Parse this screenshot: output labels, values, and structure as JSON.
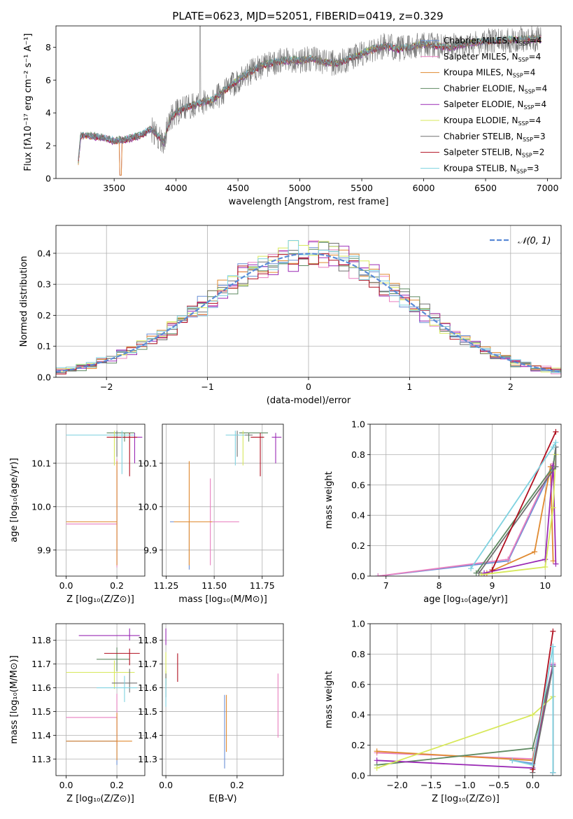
{
  "figure_title": "PLATE=0623, MJD=52051, FIBERID=0419, z=0.329",
  "colors": {
    "chabrier_miles": "#6a8fd6",
    "salpeter_miles": "#e87fbf",
    "kroupa_miles": "#e08a30",
    "chabrier_elodie": "#5f8a62",
    "salpeter_elodie": "#9a2ab5",
    "kroupa_elodie": "#d7e85a",
    "chabrier_stelib": "#707070",
    "salpeter_stelib": "#b01020",
    "kroupa_stelib": "#7fd2e0",
    "gaussian": "#5a8ad6"
  },
  "chart_data": [
    {
      "id": "spectrum",
      "type": "line",
      "xlabel": "wavelength [Angstrom, rest frame]",
      "ylabel": "Flux [fλ10⁻¹⁷ erg cm⁻² s⁻¹ A⁻¹]",
      "xlim": [
        3030,
        7110
      ],
      "ylim": [
        0,
        9.3
      ],
      "xticks": [
        3500,
        4000,
        4500,
        5000,
        5500,
        6000,
        6500,
        7000
      ],
      "yticks": [
        0,
        2,
        4,
        6,
        8
      ],
      "legend_position": "top-right",
      "series": [
        {
          "key": "chabrier_miles",
          "name": "Chabrier MILES, N",
          "sub": "SSP",
          "suffix": "=4"
        },
        {
          "key": "salpeter_miles",
          "name": "Salpeter MILES, N",
          "sub": "SSP",
          "suffix": "=4"
        },
        {
          "key": "kroupa_miles",
          "name": "Kroupa MILES, N",
          "sub": "SSP",
          "suffix": "=4"
        },
        {
          "key": "chabrier_elodie",
          "name": "Chabrier ELODIE, N",
          "sub": "SSP",
          "suffix": "=4"
        },
        {
          "key": "salpeter_elodie",
          "name": "Salpeter ELODIE, N",
          "sub": "SSP",
          "suffix": "=4"
        },
        {
          "key": "kroupa_elodie",
          "name": "Kroupa ELODIE, N",
          "sub": "SSP",
          "suffix": "=4"
        },
        {
          "key": "chabrier_stelib",
          "name": "Chabrier STELIB, N",
          "sub": "SSP",
          "suffix": "=3"
        },
        {
          "key": "salpeter_stelib",
          "name": "Salpeter STELIB, N",
          "sub": "SSP",
          "suffix": "=2"
        },
        {
          "key": "kroupa_stelib",
          "name": "Kroupa STELIB, N",
          "sub": "SSP",
          "suffix": "=3"
        }
      ],
      "continuum": [
        [
          3200,
          0.2
        ],
        [
          3230,
          2.6
        ],
        [
          3300,
          2.6
        ],
        [
          3400,
          2.5
        ],
        [
          3500,
          2.3
        ],
        [
          3600,
          2.4
        ],
        [
          3700,
          2.6
        ],
        [
          3800,
          3.0
        ],
        [
          3850,
          2.6
        ],
        [
          3900,
          2.2
        ],
        [
          3950,
          3.6
        ],
        [
          4000,
          4.0
        ],
        [
          4100,
          4.4
        ],
        [
          4200,
          4.6
        ],
        [
          4300,
          4.8
        ],
        [
          4400,
          5.4
        ],
        [
          4500,
          6.0
        ],
        [
          4600,
          6.5
        ],
        [
          4700,
          6.9
        ],
        [
          4800,
          7.1
        ],
        [
          4900,
          7.2
        ],
        [
          5000,
          7.2
        ],
        [
          5100,
          7.3
        ],
        [
          5200,
          7.1
        ],
        [
          5300,
          7.0
        ],
        [
          5400,
          7.3
        ],
        [
          5500,
          7.6
        ],
        [
          5600,
          7.9
        ],
        [
          5700,
          8.1
        ],
        [
          5800,
          7.9
        ],
        [
          5900,
          8.0
        ],
        [
          6000,
          8.2
        ],
        [
          6200,
          8.0
        ],
        [
          6400,
          8.3
        ],
        [
          6600,
          8.4
        ],
        [
          6800,
          8.5
        ],
        [
          6950,
          8.5
        ]
      ],
      "data_noise_amplitude": 0.8
    },
    {
      "id": "residuals",
      "type": "step",
      "xlabel": "(data-model)/error",
      "ylabel": "Normed distribution",
      "xlim": [
        -2.5,
        2.5
      ],
      "ylim": [
        0,
        0.49
      ],
      "xticks": [
        -2,
        -1,
        0,
        1,
        2
      ],
      "yticks": [
        0.0,
        0.1,
        0.2,
        0.3,
        0.4
      ],
      "legend": "𝒩(0, 1)",
      "legend_position": "top-right",
      "bin_width": 0.1,
      "grid": true
    },
    {
      "id": "age_vs_Z",
      "type": "errorbar",
      "xlabel": "Z [log₁₀(Z/Z⊙)]",
      "ylabel": "age  [log₁₀(age/yr)]",
      "xlim": [
        -0.04,
        0.31
      ],
      "ylim": [
        9.84,
        10.19
      ],
      "xticks": [
        0.0,
        0.2
      ],
      "yticks": [
        9.9,
        10.0,
        10.1
      ],
      "grid": true,
      "points": [
        {
          "key": "chabrier_miles",
          "x": 0.2,
          "y": 9.965,
          "xerr": [
            0.2,
            0.0
          ],
          "yerr": [
            0.1,
            0.12
          ]
        },
        {
          "key": "salpeter_miles",
          "x": 0.2,
          "y": 9.96,
          "xerr": [
            0.2,
            0.0
          ],
          "yerr": [
            0.1,
            0.15
          ]
        },
        {
          "key": "kroupa_miles",
          "x": 0.2,
          "y": 9.965,
          "xerr": [
            0.2,
            0.0
          ],
          "yerr": [
            0.1,
            0.14
          ]
        },
        {
          "key": "chabrier_elodie",
          "x": 0.23,
          "y": 10.17,
          "xerr": [
            0.07,
            0.04
          ],
          "yerr": [
            0.02,
            0.0
          ]
        },
        {
          "key": "salpeter_elodie",
          "x": 0.27,
          "y": 10.16,
          "xerr": [
            0.07,
            0.03
          ],
          "yerr": [
            0.06,
            0.01
          ]
        },
        {
          "key": "kroupa_elodie",
          "x": 0.19,
          "y": 10.165,
          "xerr": [
            0.14,
            0.08
          ],
          "yerr": [
            0.07,
            0.01
          ]
        },
        {
          "key": "chabrier_stelib",
          "x": 0.2,
          "y": 10.165,
          "xerr": [
            0.04,
            0.06
          ],
          "yerr": [
            0.05,
            0.01
          ]
        },
        {
          "key": "salpeter_stelib",
          "x": 0.25,
          "y": 10.16,
          "xerr": [
            0.09,
            0.03
          ],
          "yerr": [
            0.09,
            0.01
          ]
        },
        {
          "key": "kroupa_stelib",
          "x": 0.22,
          "y": 10.165,
          "xerr": [
            0.22,
            0.05
          ],
          "yerr": [
            0.09,
            0.01
          ]
        }
      ]
    },
    {
      "id": "age_vs_mass",
      "type": "errorbar",
      "xlabel": "mass [log₁₀(M/M⊙)]",
      "ylabel": "",
      "xlim": [
        11.23,
        11.86
      ],
      "ylim": [
        9.84,
        10.19
      ],
      "xticks": [
        11.25,
        11.5,
        11.75
      ],
      "yticks": [
        9.9,
        10.0,
        10.1
      ],
      "grid": true,
      "points": [
        {
          "key": "chabrier_miles",
          "x": 11.37,
          "y": 9.965,
          "xerr": [
            0.1,
            0.1
          ],
          "yerr": [
            0.11,
            0.0
          ]
        },
        {
          "key": "salpeter_miles",
          "x": 11.48,
          "y": 9.965,
          "xerr": [
            0.12,
            0.15
          ],
          "yerr": [
            0.1,
            0.1
          ]
        },
        {
          "key": "kroupa_miles",
          "x": 11.37,
          "y": 9.965,
          "xerr": [
            0.08,
            0.12
          ],
          "yerr": [
            0.1,
            0.14
          ]
        },
        {
          "key": "chabrier_elodie",
          "x": 11.68,
          "y": 10.17,
          "xerr": [
            0.05,
            0.1
          ],
          "yerr": [
            0.02,
            0.0
          ]
        },
        {
          "key": "salpeter_elodie",
          "x": 11.82,
          "y": 10.16,
          "xerr": [
            0.02,
            0.03
          ],
          "yerr": [
            0.06,
            0.01
          ]
        },
        {
          "key": "kroupa_elodie",
          "x": 11.65,
          "y": 10.165,
          "xerr": [
            0.05,
            0.04
          ],
          "yerr": [
            0.07,
            0.01
          ]
        },
        {
          "key": "chabrier_stelib",
          "x": 11.62,
          "y": 10.165,
          "xerr": [
            0.04,
            0.08
          ],
          "yerr": [
            0.05,
            0.01
          ]
        },
        {
          "key": "salpeter_stelib",
          "x": 11.74,
          "y": 10.16,
          "xerr": [
            0.05,
            0.02
          ],
          "yerr": [
            0.09,
            0.01
          ]
        },
        {
          "key": "kroupa_stelib",
          "x": 11.61,
          "y": 10.165,
          "xerr": [
            0.05,
            0.05
          ],
          "yerr": [
            0.07,
            0.01
          ]
        }
      ]
    },
    {
      "id": "massweight_vs_age",
      "type": "line",
      "xlabel": "age  [log₁₀(age/yr)]",
      "ylabel": "mass weight",
      "xlim": [
        6.7,
        10.3
      ],
      "ylim": [
        0,
        1.0
      ],
      "xticks": [
        7,
        8,
        9,
        10
      ],
      "yticks": [
        0.0,
        0.2,
        0.4,
        0.6,
        0.8,
        1.0
      ],
      "grid": true,
      "series": [
        {
          "key": "chabrier_miles",
          "x": [
            6.85,
            9.3,
            10.15,
            10.2
          ],
          "y": [
            0.0,
            0.1,
            0.72,
            0.85
          ]
        },
        {
          "key": "salpeter_miles",
          "x": [
            6.85,
            9.3,
            10.15
          ],
          "y": [
            0.0,
            0.11,
            0.74
          ]
        },
        {
          "key": "kroupa_miles",
          "x": [
            8.9,
            9.8,
            10.1,
            10.15
          ],
          "y": [
            0.02,
            0.16,
            0.72,
            0.1
          ]
        },
        {
          "key": "chabrier_elodie",
          "x": [
            8.7,
            10.15,
            10.2
          ],
          "y": [
            0.02,
            0.72,
            0.85
          ]
        },
        {
          "key": "salpeter_elodie",
          "x": [
            8.85,
            10.0,
            10.15,
            10.2
          ],
          "y": [
            0.02,
            0.11,
            0.73,
            0.08
          ]
        },
        {
          "key": "kroupa_elodie",
          "x": [
            8.8,
            10.0,
            10.15,
            10.2
          ],
          "y": [
            0.01,
            0.06,
            0.45,
            0.8
          ]
        },
        {
          "key": "chabrier_stelib",
          "x": [
            8.75,
            10.2,
            10.2
          ],
          "y": [
            0.02,
            0.72,
            0.85
          ]
        },
        {
          "key": "salpeter_stelib",
          "x": [
            9.0,
            10.2
          ],
          "y": [
            0.04,
            0.95
          ]
        },
        {
          "key": "kroupa_stelib",
          "x": [
            8.6,
            10.15,
            10.2
          ],
          "y": [
            0.05,
            0.85,
            0.88
          ]
        }
      ]
    },
    {
      "id": "mass_vs_Z",
      "type": "errorbar",
      "xlabel": "Z [log₁₀(Z/Z⊙)]",
      "ylabel": "mass [log₁₀(M/M⊙)]",
      "xlim": [
        -0.04,
        0.31
      ],
      "ylim": [
        11.23,
        11.87
      ],
      "xticks": [
        0.0,
        0.2
      ],
      "yticks": [
        11.3,
        11.4,
        11.5,
        11.6,
        11.7,
        11.8
      ],
      "grid": true,
      "points": [
        {
          "key": "chabrier_miles",
          "x": 0.2,
          "y": 11.375,
          "xerr": [
            0.2,
            0.0
          ],
          "yerr": [
            0.1,
            0.1
          ]
        },
        {
          "key": "salpeter_miles",
          "x": 0.2,
          "y": 11.475,
          "xerr": [
            0.2,
            0.0
          ],
          "yerr": [
            0.12,
            0.1
          ]
        },
        {
          "key": "kroupa_miles",
          "x": 0.2,
          "y": 11.375,
          "xerr": [
            0.2,
            0.06
          ],
          "yerr": [
            0.08,
            0.12
          ]
        },
        {
          "key": "chabrier_elodie",
          "x": 0.2,
          "y": 11.72,
          "xerr": [
            0.08,
            0.05
          ],
          "yerr": [
            0.05,
            0.05
          ]
        },
        {
          "key": "salpeter_elodie",
          "x": 0.25,
          "y": 11.82,
          "xerr": [
            0.2,
            0.04
          ],
          "yerr": [
            0.02,
            0.03
          ]
        },
        {
          "key": "kroupa_elodie",
          "x": 0.19,
          "y": 11.665,
          "xerr": [
            0.19,
            0.08
          ],
          "yerr": [
            0.07,
            0.05
          ]
        },
        {
          "key": "chabrier_stelib",
          "x": 0.25,
          "y": 11.62,
          "xerr": [
            0.07,
            0.03
          ],
          "yerr": [
            0.04,
            0.06
          ]
        },
        {
          "key": "salpeter_stelib",
          "x": 0.25,
          "y": 11.745,
          "xerr": [
            0.1,
            0.04
          ],
          "yerr": [
            0.05,
            0.02
          ]
        },
        {
          "key": "kroupa_stelib",
          "x": 0.23,
          "y": 11.6,
          "xerr": [
            0.11,
            0.05
          ],
          "yerr": [
            0.06,
            0.05
          ]
        }
      ]
    },
    {
      "id": "mass_vs_ebv",
      "type": "errorbar",
      "xlabel": "E(B-V)",
      "ylabel": "",
      "xlim": [
        -0.01,
        0.33
      ],
      "ylim": [
        11.23,
        11.87
      ],
      "xticks": [
        0.0,
        0.2
      ],
      "yticks": [
        11.3,
        11.4,
        11.5,
        11.6,
        11.7,
        11.8
      ],
      "grid": true,
      "points": [
        {
          "key": "chabrier_miles",
          "x": 0.165,
          "y": 11.42,
          "xerr": [
            0,
            0
          ],
          "yerr": [
            0.16,
            0.15
          ]
        },
        {
          "key": "salpeter_miles",
          "x": 0.315,
          "y": 11.52,
          "xerr": [
            0,
            0
          ],
          "yerr": [
            0.13,
            0.14
          ]
        },
        {
          "key": "kroupa_miles",
          "x": 0.17,
          "y": 11.45,
          "xerr": [
            0,
            0
          ],
          "yerr": [
            0.12,
            0.12
          ]
        },
        {
          "key": "chabrier_elodie",
          "x": 0.0,
          "y": 11.64,
          "xerr": [
            0,
            0
          ],
          "yerr": [
            0.03,
            0.03
          ]
        },
        {
          "key": "salpeter_elodie",
          "x": 0.0,
          "y": 11.8,
          "xerr": [
            0,
            0
          ],
          "yerr": [
            0.02,
            0.05
          ]
        },
        {
          "key": "kroupa_elodie",
          "x": 0.0,
          "y": 11.68,
          "xerr": [
            0,
            0
          ],
          "yerr": [
            0.07,
            0.07
          ]
        },
        {
          "key": "chabrier_stelib",
          "x": 0.0,
          "y": 11.6,
          "xerr": [
            0,
            0
          ],
          "yerr": [
            0.04,
            0.06
          ]
        },
        {
          "key": "salpeter_stelib",
          "x": 0.033,
          "y": 11.685,
          "xerr": [
            0,
            0
          ],
          "yerr": [
            0.06,
            0.06
          ]
        },
        {
          "key": "kroupa_stelib",
          "x": 0.0,
          "y": 11.58,
          "xerr": [
            0,
            0
          ],
          "yerr": [
            0.06,
            0.06
          ]
        }
      ]
    },
    {
      "id": "massweight_vs_Z",
      "type": "line",
      "xlabel": "Z [log₁₀(Z/Z⊙)]",
      "ylabel": "mass weight",
      "xlim": [
        -2.4,
        0.42
      ],
      "ylim": [
        0,
        1.0
      ],
      "xticks": [
        -2.0,
        -1.5,
        -1.0,
        -0.5,
        0.0
      ],
      "yticks": [
        0.0,
        0.2,
        0.4,
        0.6,
        0.8,
        1.0
      ],
      "grid": true,
      "series": [
        {
          "key": "chabrier_miles",
          "x": [
            -0.3,
            0.0,
            0.3,
            0.3
          ],
          "y": [
            0.1,
            0.08,
            0.72,
            0.85
          ]
        },
        {
          "key": "salpeter_miles",
          "x": [
            -2.3,
            0.0,
            0.3
          ],
          "y": [
            0.15,
            0.11,
            0.74
          ]
        },
        {
          "key": "kroupa_miles",
          "x": [
            -2.3,
            0.0,
            0.3,
            0.3
          ],
          "y": [
            0.16,
            0.1,
            0.72,
            0.02
          ]
        },
        {
          "key": "chabrier_elodie",
          "x": [
            -2.3,
            0.0,
            0.3,
            0.3
          ],
          "y": [
            0.07,
            0.18,
            0.72,
            0.02
          ]
        },
        {
          "key": "salpeter_elodie",
          "x": [
            -2.3,
            0.0,
            0.3,
            0.3
          ],
          "y": [
            0.1,
            0.05,
            0.73,
            0.02
          ]
        },
        {
          "key": "kroupa_elodie",
          "x": [
            -2.3,
            0.0,
            0.3
          ],
          "y": [
            0.05,
            0.4,
            0.52
          ]
        },
        {
          "key": "chabrier_stelib",
          "x": [
            0.0,
            0.3,
            0.3
          ],
          "y": [
            0.02,
            0.72,
            0.02
          ]
        },
        {
          "key": "salpeter_stelib",
          "x": [
            0.0,
            0.3
          ],
          "y": [
            0.04,
            0.95
          ]
        },
        {
          "key": "kroupa_stelib",
          "x": [
            -0.3,
            0.0,
            0.3,
            0.3
          ],
          "y": [
            0.1,
            0.07,
            0.85,
            0.02
          ]
        }
      ]
    }
  ]
}
